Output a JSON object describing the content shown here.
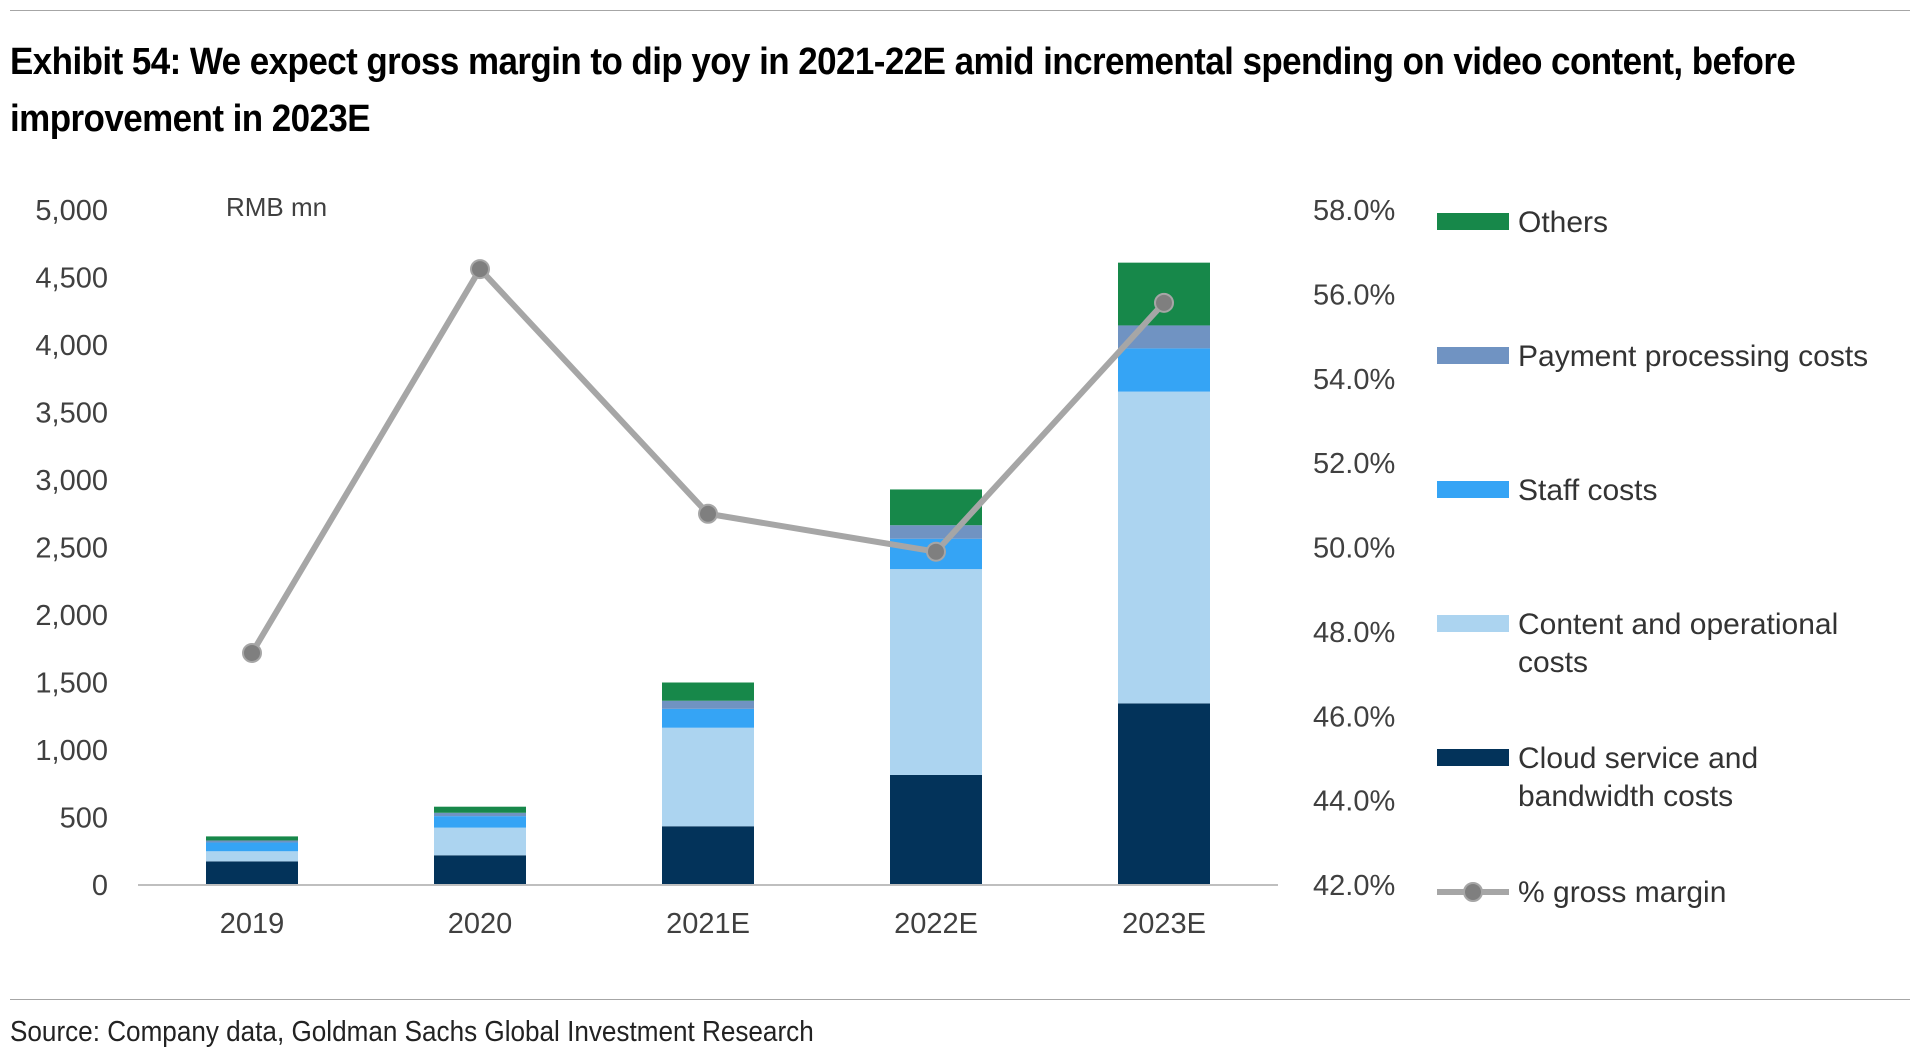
{
  "title": "Exhibit 54: We expect gross margin to dip yoy in 2021-22E amid incremental spending on video content, before improvement in 2023E",
  "source": "Source: Company data, Goldman Sachs Global Investment Research",
  "chart_data": {
    "type": "bar",
    "stacked": true,
    "unit_label": "RMB mn",
    "categories": [
      "2019",
      "2020",
      "2021E",
      "2022E",
      "2023E"
    ],
    "series": [
      {
        "name": "Cloud service and bandwidth costs",
        "color": "#03335a",
        "values": [
          175,
          220,
          435,
          815,
          1345
        ]
      },
      {
        "name": "Content and operational costs",
        "color": "#acd4f0",
        "values": [
          75,
          205,
          730,
          1525,
          2310
        ]
      },
      {
        "name": "Staff costs",
        "color": "#35a4f5",
        "values": [
          65,
          85,
          140,
          225,
          320
        ]
      },
      {
        "name": "Payment processing costs",
        "color": "#7093c2",
        "values": [
          15,
          25,
          60,
          100,
          170
        ]
      },
      {
        "name": "Others",
        "color": "#17884a",
        "values": [
          30,
          45,
          135,
          265,
          465
        ]
      }
    ],
    "line_series": {
      "name": "% gross margin",
      "color": "#a6a6a6",
      "marker_color": "#7f7f7f",
      "values": [
        47.5,
        56.6,
        50.8,
        49.9,
        55.8
      ]
    },
    "y_left": {
      "min": 0,
      "max": 5000,
      "step": 500,
      "tick_labels": [
        "0",
        "500",
        "1,000",
        "1,500",
        "2,000",
        "2,500",
        "3,000",
        "3,500",
        "4,000",
        "4,500",
        "5,000"
      ]
    },
    "y_right": {
      "min": 42,
      "max": 58,
      "step": 2,
      "tick_labels": [
        "42.0%",
        "44.0%",
        "46.0%",
        "48.0%",
        "50.0%",
        "52.0%",
        "54.0%",
        "56.0%",
        "58.0%"
      ]
    },
    "legend": {
      "position": "right",
      "entries": [
        {
          "series": "Others",
          "lines": [
            "Others"
          ]
        },
        {
          "series": "Payment processing costs",
          "lines": [
            "Payment processing costs"
          ]
        },
        {
          "series": "Staff costs",
          "lines": [
            "Staff costs"
          ]
        },
        {
          "series": "Content and operational costs",
          "lines": [
            "Content and operational",
            "costs"
          ]
        },
        {
          "series": "Cloud service and bandwidth costs",
          "lines": [
            "Cloud service and",
            "bandwidth costs"
          ]
        },
        {
          "series": "% gross margin",
          "lines": [
            "% gross margin"
          ]
        }
      ]
    },
    "grid": false
  }
}
